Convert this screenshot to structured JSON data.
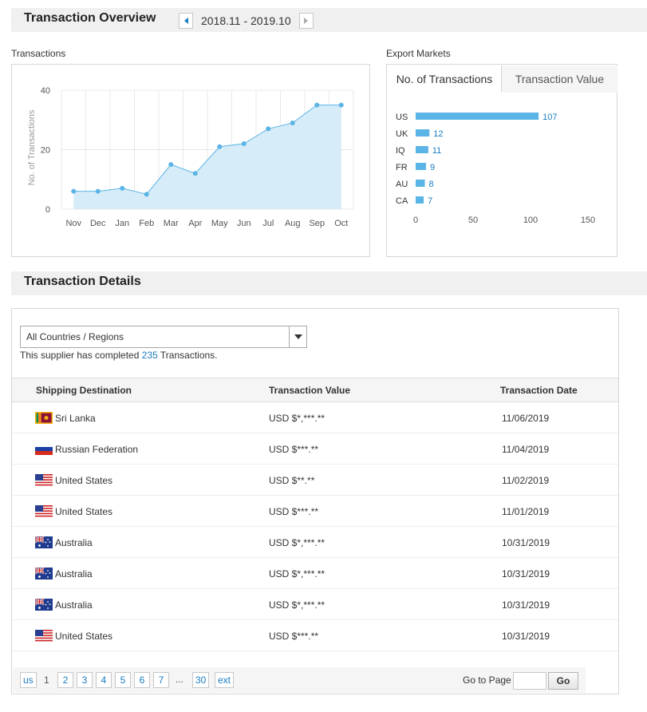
{
  "overview": {
    "title": "Transaction Overview",
    "date_range": "2018.11 - 2019.10"
  },
  "transactions_panel": {
    "label": "Transactions",
    "y_axis_label": "No. of Transactions"
  },
  "markets_panel": {
    "label": "Export Markets",
    "tabs": [
      "No. of Transactions",
      "Transaction Value"
    ]
  },
  "chart_data": [
    {
      "type": "area",
      "ylabel": "No. of Transactions",
      "categories": [
        "Nov",
        "Dec",
        "Jan",
        "Feb",
        "Mar",
        "Apr",
        "May",
        "Jun",
        "Jul",
        "Aug",
        "Sep",
        "Oct"
      ],
      "values": [
        6,
        6,
        7,
        5,
        15,
        12,
        21,
        22,
        27,
        29,
        35,
        35
      ],
      "ylim": [
        0,
        40
      ],
      "yticks": [
        "0",
        "20",
        "40"
      ],
      "grid": true
    },
    {
      "type": "bar",
      "orientation": "horizontal",
      "categories": [
        "US",
        "UK",
        "IQ",
        "FR",
        "AU",
        "CA"
      ],
      "values": [
        107,
        12,
        11,
        9,
        8,
        7
      ],
      "xlim": [
        0,
        150
      ],
      "xticks": [
        "0",
        "50",
        "100",
        "150"
      ]
    }
  ],
  "details": {
    "title": "Transaction Details",
    "filter_value": "All Countries / Regions",
    "summary_pre": "This supplier has completed",
    "summary_count": "235",
    "summary_post": "Transactions.",
    "columns": [
      "Shipping Destination",
      "Transaction Value",
      "Transaction Date"
    ],
    "rows": [
      {
        "flag": "sri-lanka",
        "destination": "Sri Lanka",
        "value": "USD $*,***.**",
        "date": "11/06/2019"
      },
      {
        "flag": "russia",
        "destination": "Russian Federation",
        "value": "USD $***.**",
        "date": "11/04/2019"
      },
      {
        "flag": "usa",
        "destination": "United States",
        "value": "USD $**.**",
        "date": "11/02/2019"
      },
      {
        "flag": "usa",
        "destination": "United States",
        "value": "USD $***.**",
        "date": "11/01/2019"
      },
      {
        "flag": "australia",
        "destination": "Australia",
        "value": "USD $*,***.**",
        "date": "10/31/2019"
      },
      {
        "flag": "australia",
        "destination": "Australia",
        "value": "USD $*,***.**",
        "date": "10/31/2019"
      },
      {
        "flag": "australia",
        "destination": "Australia",
        "value": "USD $*,***.**",
        "date": "10/31/2019"
      },
      {
        "flag": "usa",
        "destination": "United States",
        "value": "USD $***.**",
        "date": "10/31/2019"
      }
    ]
  },
  "pagination": {
    "prev": "us",
    "current": "1",
    "pages": [
      "2",
      "3",
      "4",
      "5",
      "6",
      "7"
    ],
    "ellipsis": "...",
    "last": "30",
    "next": "ext",
    "go_label": "Go to Page",
    "go_button": "Go"
  },
  "colors": {
    "accent": "#1a7cc1",
    "bar": "#5ab4e5",
    "area_fill": "#d6ecf8",
    "line": "#5ab4e5"
  }
}
